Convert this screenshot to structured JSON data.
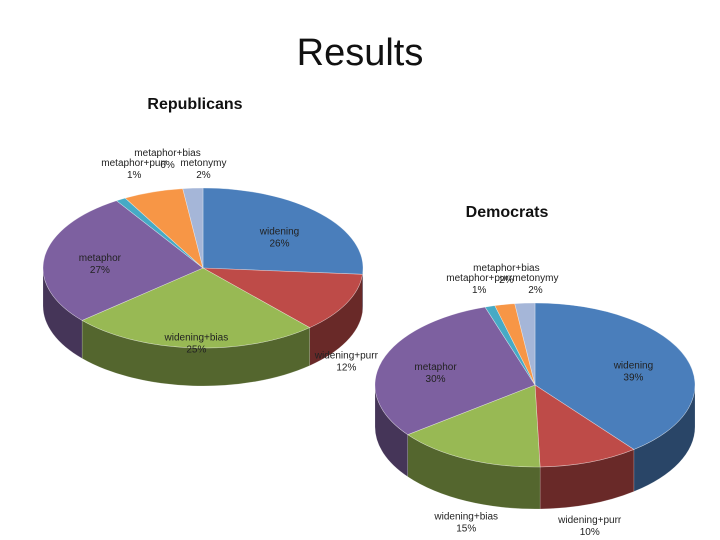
{
  "title": "Results",
  "chart_data": [
    {
      "type": "pie",
      "title": "Republicans",
      "categories": [
        "widening",
        "widening+purr",
        "widening+bias",
        "metaphor",
        "metaphor+purr",
        "metaphor+bias",
        "metonymy"
      ],
      "values": [
        26,
        12,
        25,
        27,
        1,
        6,
        2
      ],
      "value_labels": [
        "26%",
        "12%",
        "25%",
        "27%",
        "1%",
        "6%",
        "2%"
      ],
      "colors": [
        "#4a7ebb",
        "#be4b48",
        "#98b954",
        "#7d60a0",
        "#46aac5",
        "#f79646",
        "#a5b6d8"
      ]
    },
    {
      "type": "pie",
      "title": "Democrats",
      "categories": [
        "widening",
        "widening+purr",
        "widening+bias",
        "metaphor",
        "metaphor+purr",
        "metaphor+bias",
        "metonymy"
      ],
      "values": [
        39,
        10,
        15,
        30,
        1,
        2,
        2
      ],
      "value_labels": [
        "39%",
        "10%",
        "15%",
        "30%",
        "1%",
        "2%",
        "2%"
      ],
      "colors": [
        "#4a7ebb",
        "#be4b48",
        "#98b954",
        "#7d60a0",
        "#46aac5",
        "#f79646",
        "#a5b6d8"
      ]
    }
  ]
}
